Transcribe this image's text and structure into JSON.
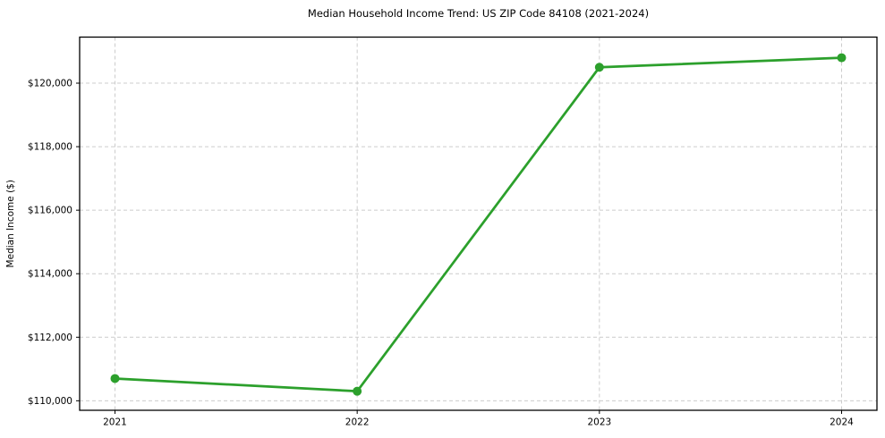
{
  "chart_data": {
    "type": "line",
    "title": "Median Household Income Trend: US ZIP Code 84108 (2021-2024)",
    "xlabel": "",
    "ylabel": "Median Income ($)",
    "x": [
      2021,
      2022,
      2023,
      2024
    ],
    "xtick_labels": [
      "2021",
      "2022",
      "2023",
      "2024"
    ],
    "values": [
      110700,
      110300,
      120500,
      120800
    ],
    "yticks": [
      110000,
      112000,
      114000,
      116000,
      118000,
      120000
    ],
    "ytick_labels": [
      "$110,000",
      "$112,000",
      "$114,000",
      "$116,000",
      "$118,000",
      "$120,000"
    ],
    "ylim": [
      109700,
      121450
    ],
    "grid": true,
    "grid_style": "dashed",
    "legend": false,
    "line_color": "#2ca02c",
    "marker": "circle",
    "colors": {
      "grid": "#cccccc",
      "spine": "#000000",
      "text": "#000000",
      "background": "#ffffff"
    }
  }
}
